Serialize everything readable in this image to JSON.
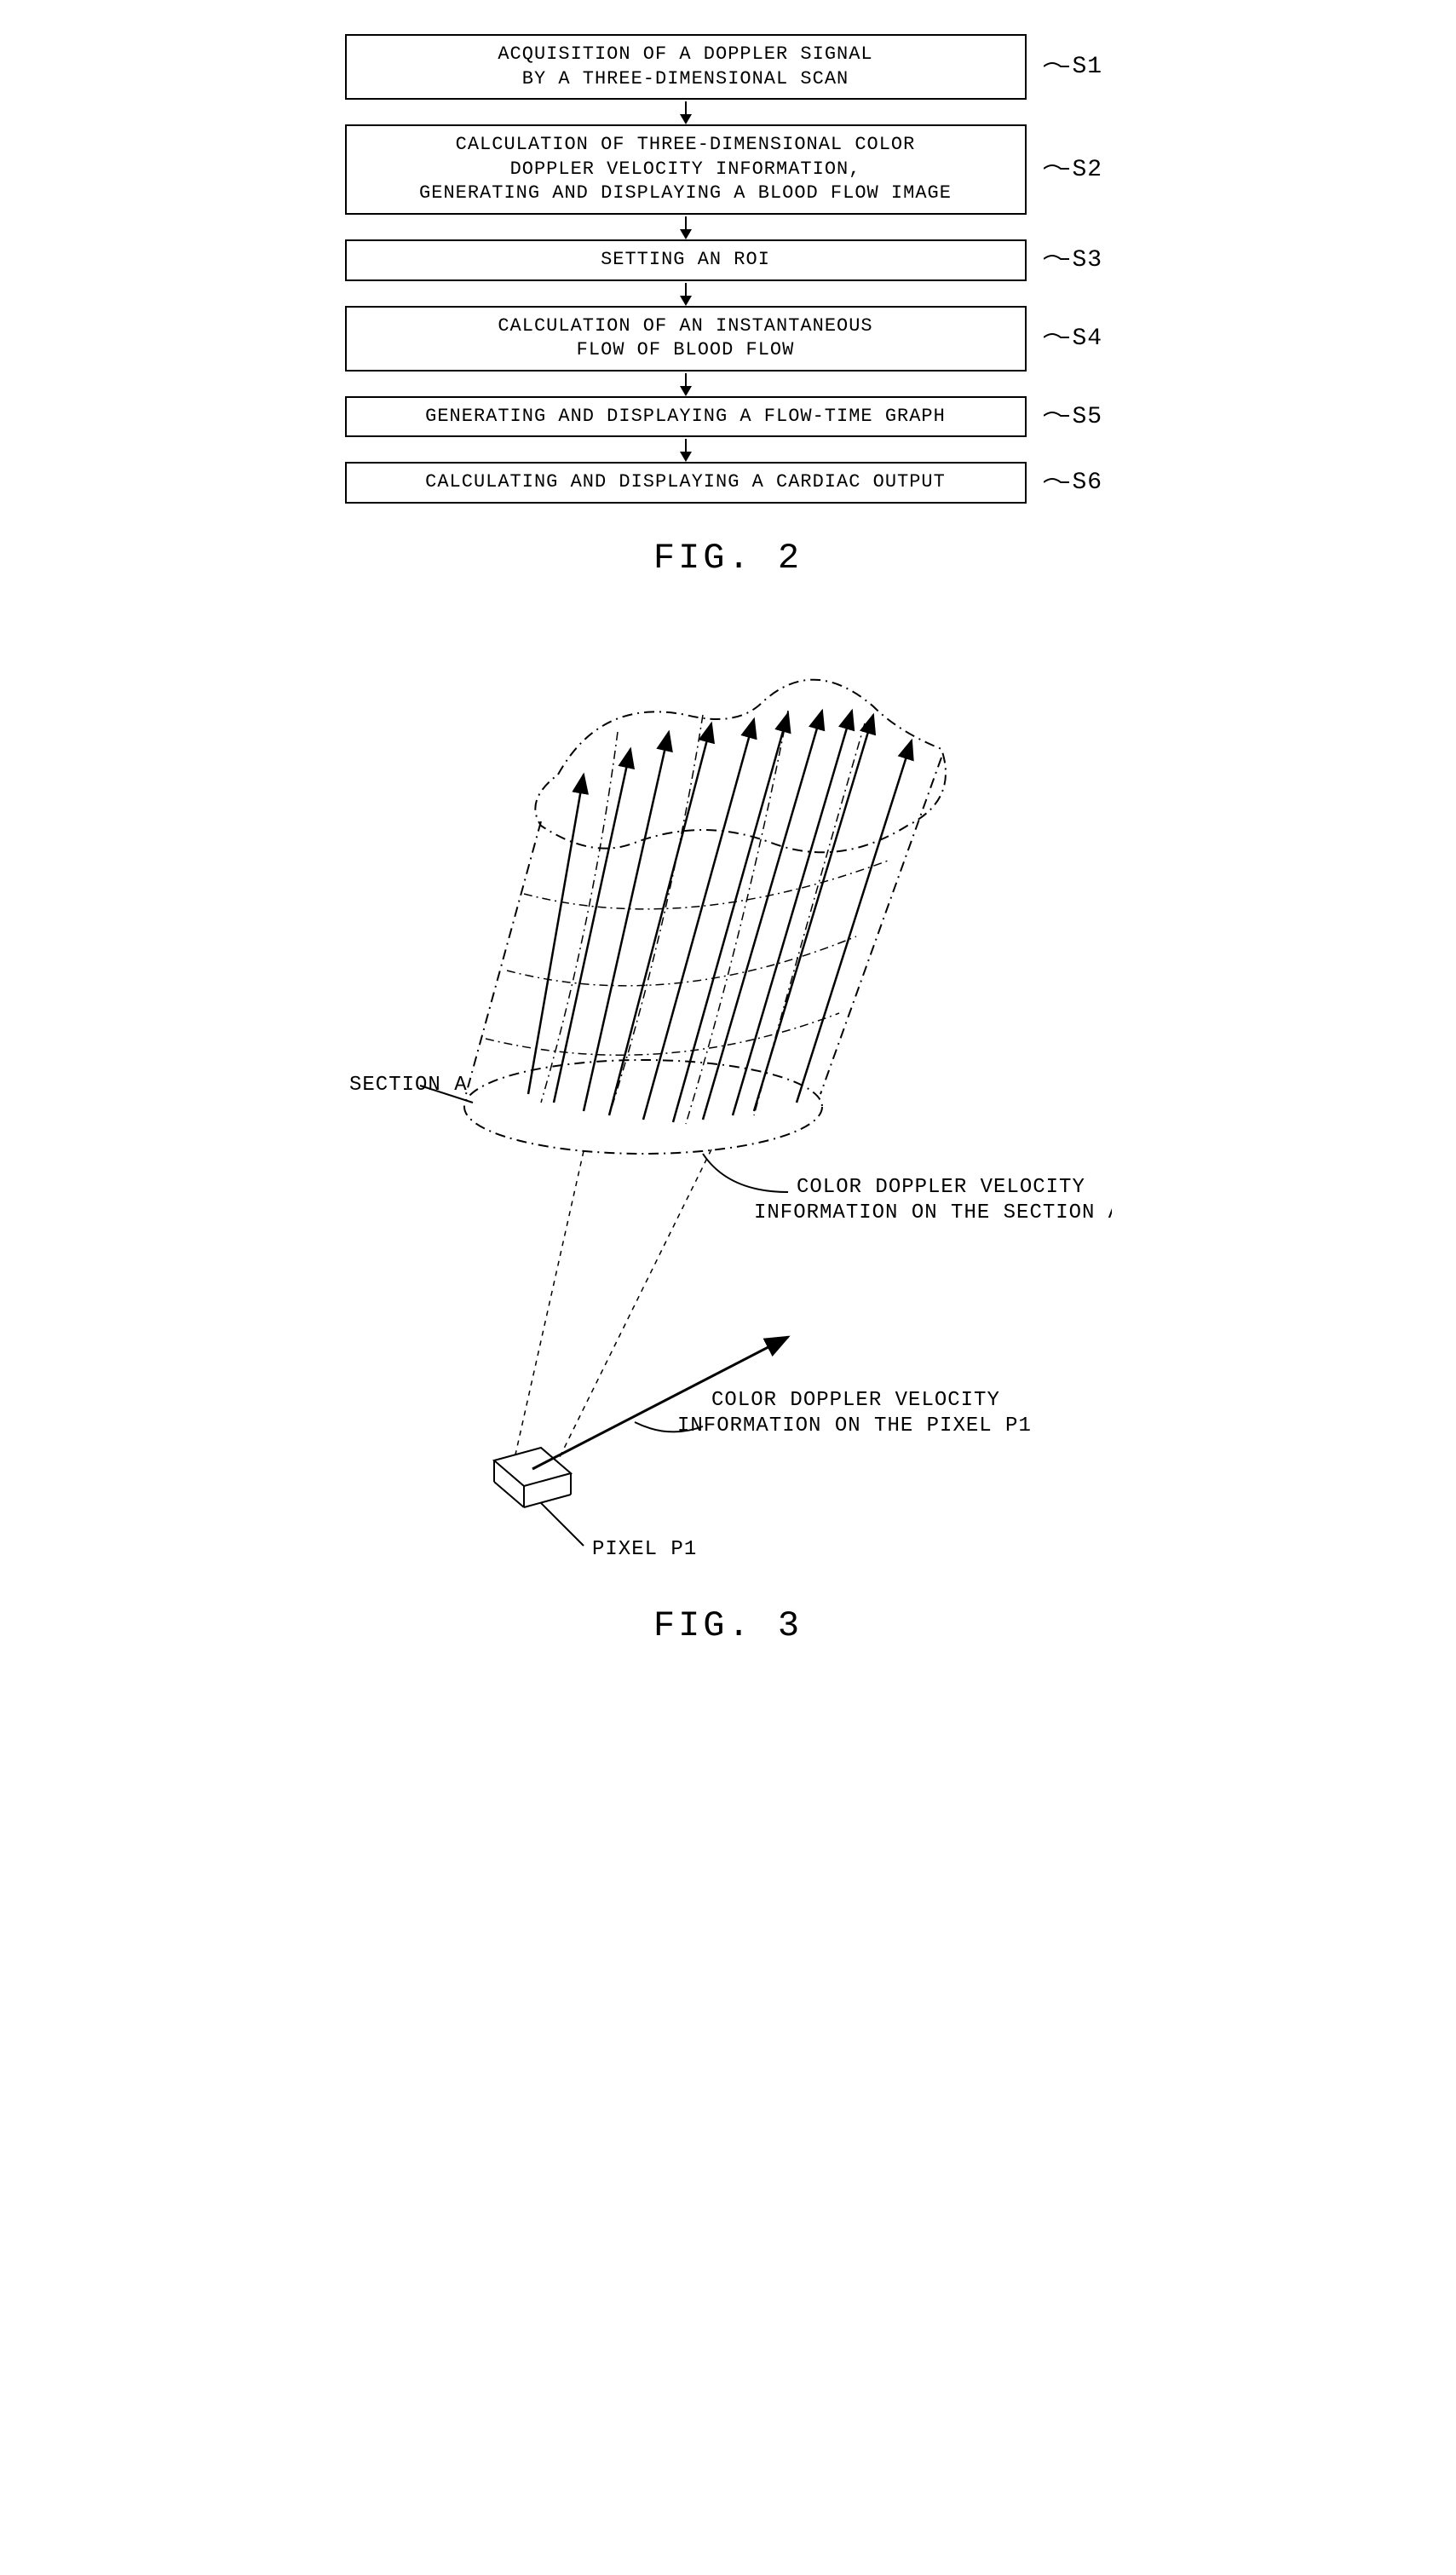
{
  "flowchart": {
    "steps": [
      {
        "id": "S1",
        "text": "ACQUISITION OF A DOPPLER SIGNAL\nBY A THREE-DIMENSIONAL SCAN"
      },
      {
        "id": "S2",
        "text": "CALCULATION OF THREE-DIMENSIONAL COLOR\nDOPPLER VELOCITY INFORMATION,\nGENERATING AND DISPLAYING A BLOOD FLOW IMAGE"
      },
      {
        "id": "S3",
        "text": "SETTING AN ROI"
      },
      {
        "id": "S4",
        "text": "CALCULATION OF AN INSTANTANEOUS\nFLOW OF BLOOD FLOW"
      },
      {
        "id": "S5",
        "text": "GENERATING AND DISPLAYING A FLOW-TIME GRAPH"
      },
      {
        "id": "S6",
        "text": "CALCULATING AND DISPLAYING A CARDIAC OUTPUT"
      }
    ]
  },
  "figure2_label": "FIG. 2",
  "figure3_label": "FIG. 3",
  "diagram": {
    "section_label": "SECTION A",
    "section_annotation": "COLOR DOPPLER VELOCITY\nINFORMATION ON THE SECTION A",
    "pixel_annotation": "COLOR DOPPLER VELOCITY\nINFORMATION ON THE PIXEL P1",
    "pixel_label": "PIXEL P1",
    "stroke_color": "#000000",
    "stroke_width": 2
  }
}
